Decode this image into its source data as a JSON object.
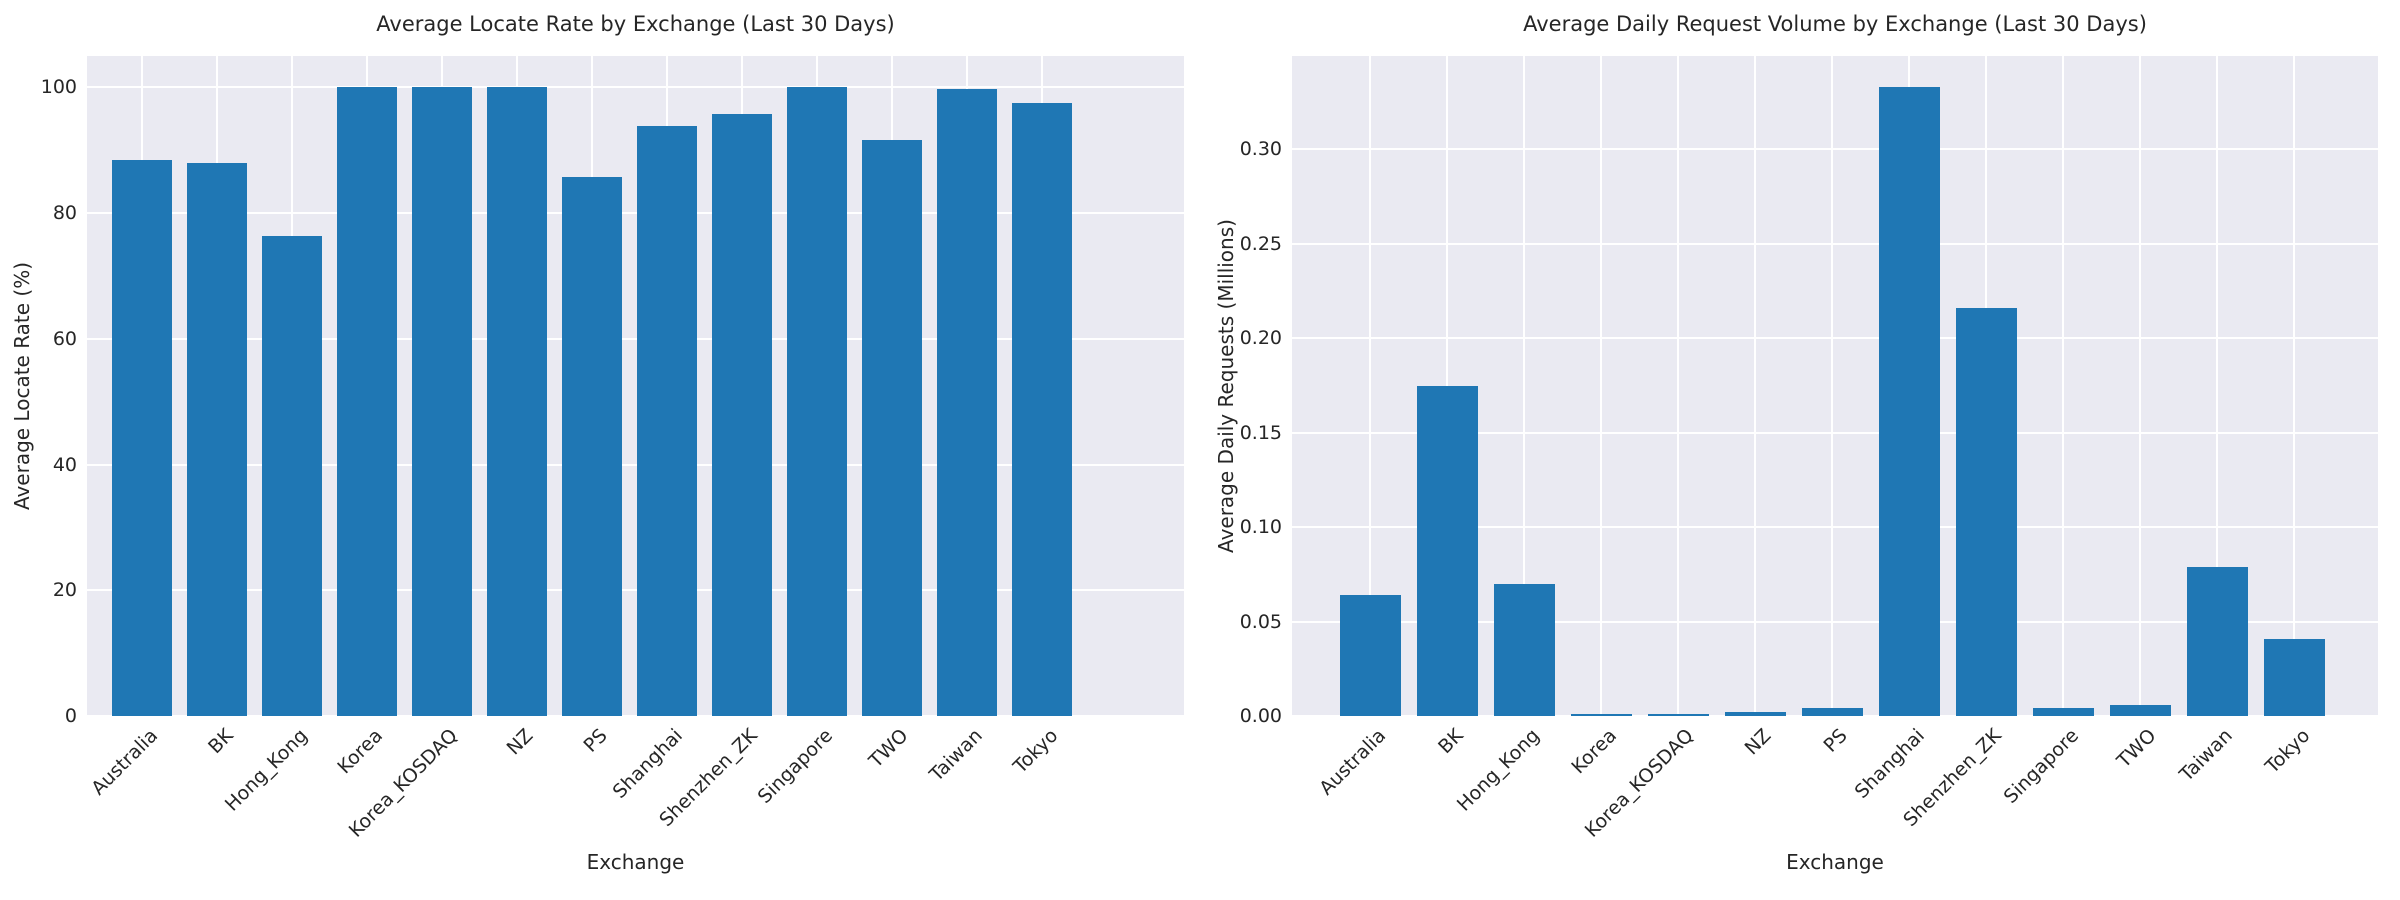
{
  "figure": {
    "background_color": "#ffffff",
    "axes_background_color": "#eaeaf2",
    "grid_color": "#ffffff",
    "bar_color": "#1f77b4",
    "text_color": "#262626"
  },
  "chart_data": [
    {
      "type": "bar",
      "title": "Average Locate Rate by Exchange (Last 30 Days)",
      "xlabel": "Exchange",
      "ylabel": "Average Locate Rate (%)",
      "categories": [
        "Australia",
        "BK",
        "Hong_Kong",
        "Korea",
        "Korea_KOSDAQ",
        "NZ",
        "PS",
        "Shanghai",
        "Shenzhen_ZK",
        "Singapore",
        "TWO",
        "Taiwan",
        "Tokyo"
      ],
      "values": [
        88.5,
        87.9,
        76.3,
        100.0,
        100.0,
        100.0,
        85.8,
        93.9,
        95.8,
        100.0,
        91.7,
        99.7,
        97.6
      ],
      "ylim": [
        0,
        105
      ],
      "yticks": [
        0,
        20,
        40,
        60,
        80,
        100
      ],
      "ytick_labels": [
        "0",
        "20",
        "40",
        "60",
        "80",
        "100"
      ],
      "grid": true,
      "legend": null
    },
    {
      "type": "bar",
      "title": "Average Daily Request Volume by Exchange (Last 30 Days)",
      "xlabel": "Exchange",
      "ylabel": "Average Daily Requests (Millions)",
      "categories": [
        "Australia",
        "BK",
        "Hong_Kong",
        "Korea",
        "Korea_KOSDAQ",
        "NZ",
        "PS",
        "Shanghai",
        "Shenzhen_ZK",
        "Singapore",
        "TWO",
        "Taiwan",
        "Tokyo"
      ],
      "values": [
        0.064,
        0.175,
        0.07,
        0.0013,
        0.0009,
        0.002,
        0.0045,
        0.333,
        0.216,
        0.004,
        0.006,
        0.079,
        0.041
      ],
      "ylim": [
        0,
        0.3495
      ],
      "yticks": [
        0,
        0.05,
        0.1,
        0.15,
        0.2,
        0.25,
        0.3
      ],
      "ytick_labels": [
        "0.00",
        "0.05",
        "0.10",
        "0.15",
        "0.20",
        "0.25",
        "0.30"
      ],
      "grid": true,
      "legend": null
    }
  ]
}
